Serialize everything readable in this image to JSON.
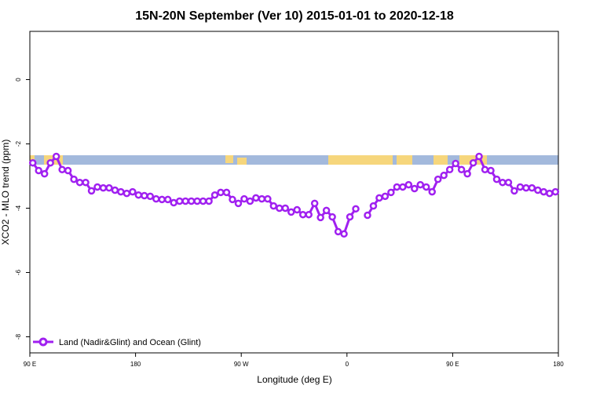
{
  "chart_data": {
    "type": "line",
    "title": "15N-20N September (Ver 10)   2015-01-01 to 2020-12-18",
    "x_label": "Longitude (deg E)",
    "y_label": "XCO2 - MLO trend (ppm)",
    "x": [
      92.5,
      97.5,
      102.5,
      107.5,
      112.5,
      117.5,
      122.5,
      127.5,
      132.5,
      137.5,
      142.5,
      147.5,
      152.5,
      157.5,
      162.5,
      167.5,
      172.5,
      177.5,
      182.5,
      187.5,
      192.5,
      197.5,
      202.5,
      207.5,
      212.5,
      217.5,
      222.5,
      227.5,
      232.5,
      237.5,
      242.5,
      247.5,
      252.5,
      257.5,
      262.5,
      267.5,
      272.5,
      277.5,
      282.5,
      287.5,
      292.5,
      297.5,
      302.5,
      307.5,
      312.5,
      317.5,
      322.5,
      327.5,
      332.5,
      337.5,
      342.5,
      347.5,
      352.5,
      357.5,
      362.5,
      367.5,
      372.5,
      377.5,
      382.5,
      387.5,
      392.5,
      397.5,
      402.5,
      407.5,
      412.5,
      417.5,
      422.5,
      427.5,
      432.5,
      437.5,
      442.5,
      447.5,
      452.5,
      457.5,
      462.5,
      467.5,
      472.5,
      477.5,
      482.5,
      487.5,
      492.5,
      497.5,
      502.5,
      507.5,
      512.5,
      517.5,
      522.5,
      527.5,
      532.5,
      537.5
    ],
    "series": [
      {
        "name": "Land (Nadir&Glint) and Ocean (Glint)",
        "color": "#a020f0",
        "values": [
          -2.59,
          -2.83,
          -2.93,
          -2.59,
          -2.39,
          -2.8,
          -2.83,
          -3.1,
          -3.2,
          -3.2,
          -3.46,
          -3.34,
          -3.37,
          -3.37,
          -3.44,
          -3.49,
          -3.54,
          -3.49,
          -3.59,
          -3.61,
          -3.63,
          -3.71,
          -3.73,
          -3.73,
          -3.83,
          -3.78,
          -3.78,
          -3.78,
          -3.78,
          -3.78,
          -3.78,
          -3.59,
          -3.51,
          -3.51,
          -3.73,
          -3.85,
          -3.71,
          -3.78,
          -3.68,
          -3.71,
          -3.71,
          -3.93,
          -4.0,
          -4.0,
          -4.12,
          -4.05,
          -4.2,
          -4.2,
          -3.85,
          -4.29,
          -4.07,
          -4.27,
          -4.73,
          -4.8,
          -4.27,
          -4.02,
          null,
          -4.22,
          -3.93,
          -3.68,
          -3.63,
          -3.51,
          -3.34,
          -3.34,
          -3.27,
          -3.39,
          -3.27,
          -3.34,
          -3.49,
          -3.1,
          -2.98,
          -2.8,
          -2.61,
          -2.8,
          -2.93,
          -2.59,
          -2.39,
          -2.8,
          -2.83,
          -3.1,
          -3.2,
          -3.2,
          -3.46,
          -3.34,
          -3.37,
          -3.37,
          -3.44,
          -3.49,
          -3.54,
          -3.49
        ]
      }
    ],
    "xlim": [
      90,
      540
    ],
    "xticks": [
      {
        "value": 90,
        "label": "90 E"
      },
      180,
      {
        "value": 270,
        "label": "90 W"
      },
      {
        "value": 360,
        "label": "0"
      },
      {
        "value": 450,
        "label": "90 E"
      },
      {
        "value": 540,
        "label": "180"
      }
    ],
    "ylim": [
      -8.5,
      1.5
    ],
    "yticks": [
      0,
      -2,
      -4,
      -6,
      -8
    ],
    "legend": "bottom-left"
  }
}
